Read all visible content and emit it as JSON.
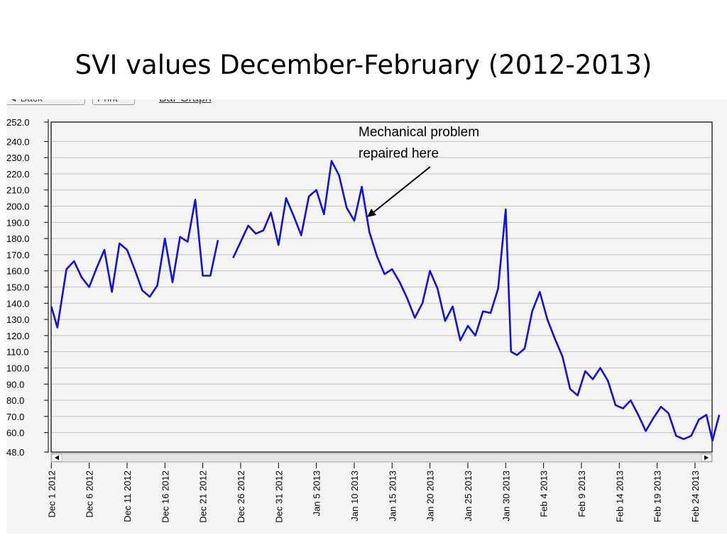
{
  "slide": {
    "title": "SVI values December-February (2012-2013)"
  },
  "toolbar": {
    "back_label": "◄ Back",
    "print_label": "Print",
    "bar_graph_label": "Bar Graph"
  },
  "annotation": {
    "text": "Mechanical problem\nrepaired here"
  },
  "colors": {
    "line": "#1010e0",
    "grid": "#c0c0c0",
    "panel": "#f4f4f4"
  },
  "chart_data": {
    "type": "line",
    "title": "SVI values December-February (2012-2013)",
    "xlabel": "",
    "ylabel": "",
    "ylim": [
      48,
      252
    ],
    "yticks": [
      "252.0",
      "240.0",
      "230.0",
      "220.0",
      "210.0",
      "200.0",
      "190.0",
      "180.0",
      "170.0",
      "160.0",
      "150.0",
      "140.0",
      "130.0",
      "120.0",
      "110.0",
      "100.0",
      "90.0",
      "80.0",
      "70.0",
      "60.0",
      "48.0"
    ],
    "xlim": [
      1,
      88
    ],
    "xtick_labels": [
      "Dec 1 2012",
      "Dec 6 2012",
      "Dec 11 2012",
      "Dec 16 2012",
      "Dec 21 2012",
      "Dec 26 2012",
      "Dec 31 2012",
      "Jan 5 2013",
      "Jan 10 2013",
      "Jan 15 2013",
      "Jan 20 2013",
      "Jan 25 2013",
      "Jan 30 2013",
      "Feb 4 2013",
      "Feb 9 2013",
      "Feb 14 2013",
      "Feb 19 2013",
      "Feb 24 2013"
    ],
    "grid": true,
    "series": [
      {
        "values": [
          [
            1,
            138
          ],
          [
            1.8,
            125
          ],
          [
            3,
            161
          ],
          [
            4,
            166
          ],
          [
            5,
            156
          ],
          [
            6,
            150
          ],
          [
            7,
            162
          ],
          [
            8,
            173
          ],
          [
            9,
            147
          ],
          [
            10,
            177
          ],
          [
            11,
            173
          ],
          [
            12,
            161
          ],
          [
            13,
            148
          ],
          [
            14,
            144
          ],
          [
            15,
            151
          ],
          [
            16,
            180
          ],
          [
            17,
            153
          ],
          [
            18,
            181
          ],
          [
            19,
            178
          ],
          [
            20,
            204
          ],
          [
            21,
            157
          ],
          [
            22,
            157
          ],
          [
            23,
            179
          ],
          null,
          [
            25,
            168
          ],
          [
            26,
            178
          ],
          [
            27,
            188
          ],
          [
            28,
            183
          ],
          [
            29,
            185
          ],
          [
            30,
            196
          ],
          [
            31,
            176
          ],
          [
            32,
            205
          ],
          [
            33,
            194
          ],
          [
            34,
            182
          ],
          [
            35,
            206
          ],
          [
            36,
            210
          ],
          [
            37,
            195
          ],
          [
            38,
            228
          ],
          [
            39,
            219
          ],
          [
            40,
            199
          ],
          [
            41,
            191
          ],
          [
            42,
            212
          ],
          [
            43,
            184
          ],
          [
            44,
            169
          ],
          [
            45,
            158
          ],
          [
            46,
            161
          ],
          [
            47,
            153
          ],
          [
            48,
            143
          ],
          [
            49,
            131
          ],
          [
            50,
            140
          ],
          [
            51,
            160
          ],
          [
            52,
            149
          ],
          [
            53,
            129
          ],
          [
            54,
            138
          ],
          [
            55,
            117
          ],
          [
            56,
            126
          ],
          [
            57,
            120
          ],
          [
            58,
            135
          ],
          [
            59,
            134
          ],
          [
            60,
            149
          ],
          [
            61,
            198
          ],
          [
            61.7,
            110
          ],
          [
            62.5,
            108
          ],
          [
            63.5,
            112
          ],
          [
            64.5,
            135
          ],
          [
            65.5,
            147
          ],
          [
            66.5,
            130
          ],
          [
            67.5,
            118
          ],
          [
            68.5,
            107
          ],
          [
            69.5,
            87
          ],
          [
            70.5,
            83
          ],
          [
            71.5,
            98
          ],
          [
            72.5,
            93
          ],
          [
            73.5,
            100
          ],
          [
            74.5,
            92
          ],
          [
            75.5,
            77
          ],
          [
            76.5,
            75
          ],
          [
            77.5,
            80
          ],
          [
            78.5,
            71
          ],
          [
            79.5,
            61
          ],
          [
            80.5,
            69
          ],
          [
            81.5,
            76
          ],
          [
            82.5,
            72
          ],
          [
            83.5,
            58
          ],
          [
            84.5,
            56
          ],
          [
            85.5,
            58
          ],
          [
            86.5,
            68
          ],
          [
            87.5,
            71
          ],
          [
            88.3,
            55
          ],
          [
            89.2,
            71
          ]
        ]
      }
    ]
  }
}
